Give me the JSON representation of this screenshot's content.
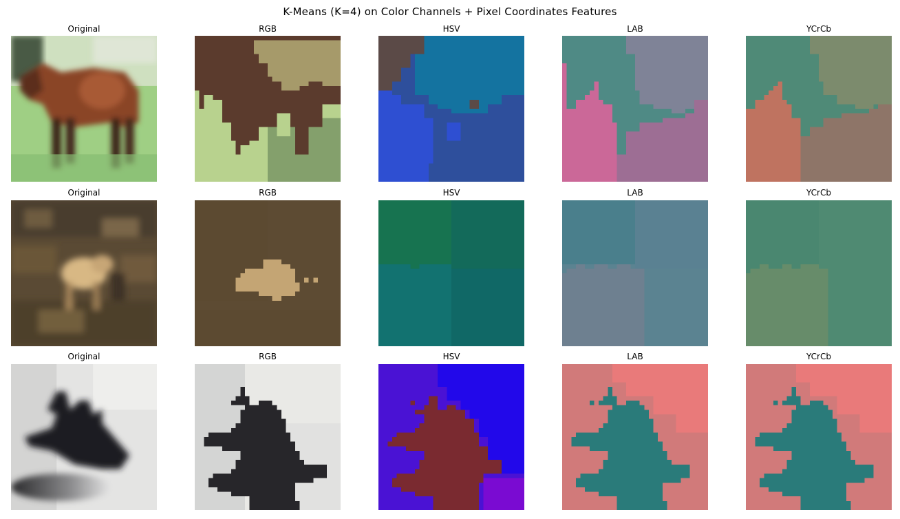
{
  "figure": {
    "suptitle": "K-Means (K=4) on Color Channels + Pixel Coordinates Features"
  },
  "rows": [
    {
      "panels": [
        {
          "title": "Original",
          "kind": "photo",
          "scene": "horse"
        },
        {
          "title": "RGB",
          "kind": "segmentation",
          "palette": [
            "#5b3b2d",
            "#b8d28e",
            "#a69a6a",
            "#84a06c"
          ]
        },
        {
          "title": "HSV",
          "kind": "segmentation",
          "palette": [
            "#5b4a47",
            "#1473a0",
            "#2e4fd2",
            "#2e4f9c"
          ]
        },
        {
          "title": "LAB",
          "kind": "segmentation",
          "palette": [
            "#4f8a85",
            "#7f8397",
            "#cb6898",
            "#9d6e94"
          ]
        },
        {
          "title": "YCrCb",
          "kind": "segmentation",
          "palette": [
            "#4f8a77",
            "#7c8b6d",
            "#bf7360",
            "#8e7568"
          ]
        }
      ]
    },
    {
      "panels": [
        {
          "title": "Original",
          "kind": "photo",
          "scene": "deer"
        },
        {
          "title": "RGB",
          "kind": "segmentation",
          "palette": [
            "#5d4b33",
            "#c4a574",
            "#5c4a30"
          ]
        },
        {
          "title": "HSV",
          "kind": "segmentation",
          "palette": [
            "#177350",
            "#136a5a",
            "#127270",
            "#106866"
          ]
        },
        {
          "title": "LAB",
          "kind": "segmentation",
          "palette": [
            "#4a7f8c",
            "#5a8192",
            "#6e8090",
            "#5b8391"
          ]
        },
        {
          "title": "YCrCb",
          "kind": "segmentation",
          "palette": [
            "#4a8770",
            "#4f8a72",
            "#678c6a"
          ]
        }
      ]
    },
    {
      "panels": [
        {
          "title": "Original",
          "kind": "photo",
          "scene": "dark-object"
        },
        {
          "title": "RGB",
          "kind": "segmentation",
          "palette": [
            "#d4d5d4",
            "#e9e9e6",
            "#e1e1e0",
            "#27262a"
          ]
        },
        {
          "title": "HSV",
          "kind": "segmentation",
          "palette": [
            "#4a12d4",
            "#2208ea",
            "#7a0bd2",
            "#7a2a30"
          ]
        },
        {
          "title": "LAB",
          "kind": "segmentation",
          "palette": [
            "#d17a7a",
            "#e97a7a",
            "#d27c7a",
            "#2a7b7a"
          ]
        },
        {
          "title": "YCrCb",
          "kind": "segmentation",
          "palette": [
            "#d17a7a",
            "#e97a7a",
            "#d27c7a",
            "#2a7b7a"
          ]
        }
      ]
    }
  ]
}
